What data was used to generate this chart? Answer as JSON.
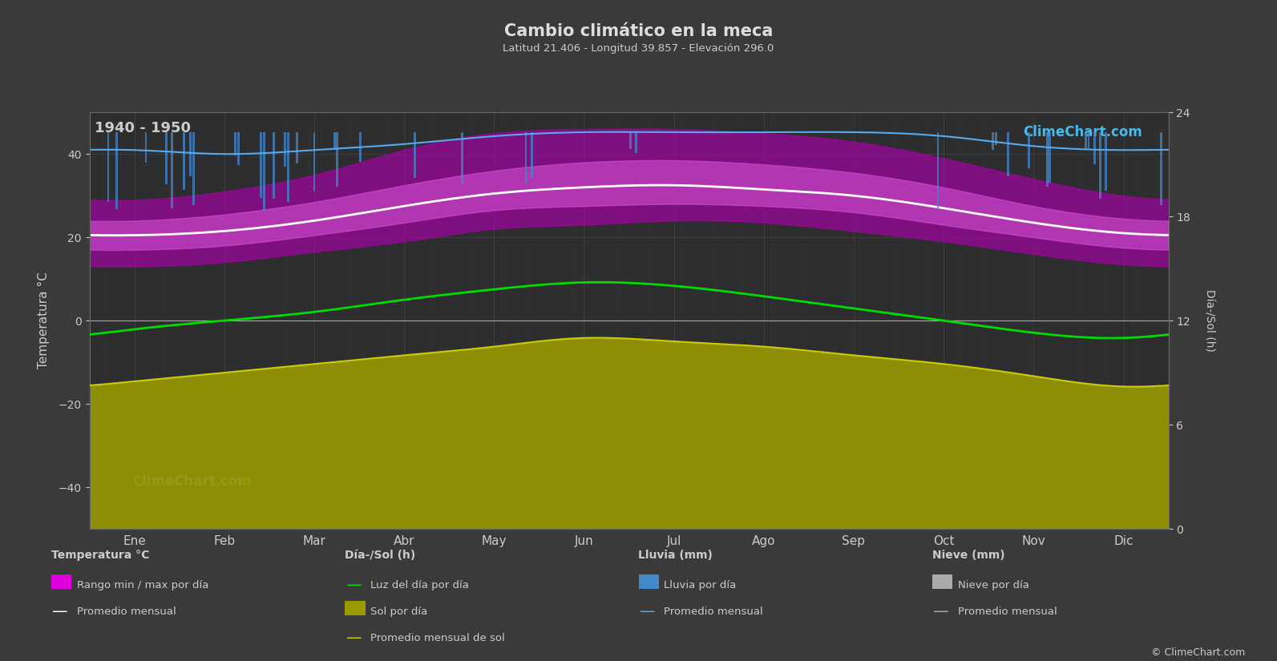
{
  "title": "Cambio climático en la meca",
  "subtitle": "Latitud 21.406 - Longitud 39.857 - Elevación 296.0",
  "year_range": "1940 - 1950",
  "background_color": "#3a3a3a",
  "plot_bg_color": "#2d2d2d",
  "months": [
    "Ene",
    "Feb",
    "Mar",
    "Abr",
    "May",
    "Jun",
    "Jul",
    "Ago",
    "Sep",
    "Oct",
    "Nov",
    "Dic"
  ],
  "temp_ylim": [
    -50,
    50
  ],
  "temp_avg": [
    20.5,
    21.5,
    24.0,
    27.5,
    30.5,
    32.0,
    32.5,
    31.5,
    30.0,
    27.0,
    23.5,
    21.0
  ],
  "temp_max_avg": [
    24.0,
    25.5,
    28.5,
    32.5,
    36.0,
    38.0,
    38.5,
    37.5,
    35.5,
    32.0,
    27.5,
    24.5
  ],
  "temp_min_avg": [
    17.0,
    18.0,
    20.5,
    23.5,
    26.5,
    27.5,
    28.0,
    27.5,
    26.0,
    23.0,
    20.0,
    17.5
  ],
  "temp_daily_max": [
    29.0,
    31.0,
    35.0,
    41.0,
    45.0,
    46.0,
    46.0,
    45.0,
    43.0,
    39.0,
    34.0,
    30.0
  ],
  "temp_daily_min": [
    13.0,
    14.0,
    16.5,
    19.0,
    22.0,
    23.0,
    24.0,
    23.5,
    21.5,
    19.0,
    16.0,
    13.5
  ],
  "daylight": [
    11.5,
    12.0,
    12.5,
    13.2,
    13.8,
    14.2,
    14.0,
    13.4,
    12.7,
    12.0,
    11.3,
    11.0
  ],
  "sunshine": [
    8.5,
    9.0,
    9.5,
    10.0,
    10.5,
    11.0,
    10.8,
    10.5,
    10.0,
    9.5,
    8.8,
    8.2
  ],
  "rainfall_monthly_avg_mm": [
    1.8,
    2.2,
    1.8,
    1.2,
    0.4,
    0.0,
    0.0,
    0.0,
    0.0,
    0.4,
    1.4,
    1.8
  ],
  "colors": {
    "temp_daily_fill": "#aa00aa",
    "temp_avg_fill": "#dd55dd",
    "temp_avg_line": "#ffffff",
    "daylight_line": "#00dd00",
    "sunshine_fill": "#999900",
    "sunshine_line": "#cccc00",
    "rain_bar": "#4488cc",
    "rain_avg_line": "#55aaee",
    "grid": "#555555",
    "text": "#cccccc",
    "title_text": "#dddddd",
    "logo_text": "#44bbee",
    "background": "#3a3a3a",
    "plot_bg": "#2d2d2d"
  },
  "legend": {
    "temp_section": "Temperatura °C",
    "rain_band": "Rango min / max por día",
    "temp_avg": "Promedio mensual",
    "sun_section": "Día-/Sol (h)",
    "daylight": "Luz del día por día",
    "sunshine": "Sol por día",
    "sunshine_avg": "Promedio mensual de sol",
    "rain_section": "Lluvia (mm)",
    "rain_bar_label": "Lluvia por día",
    "rain_avg": "Promedio mensual",
    "snow_section": "Nieve (mm)",
    "snow_bar": "Nieve por día",
    "snow_avg": "Promedio mensual"
  }
}
